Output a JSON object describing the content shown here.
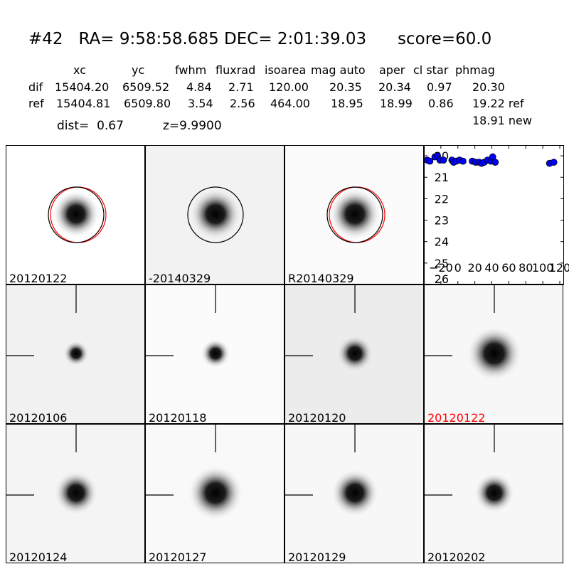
{
  "header": {
    "title": "#42   RA= 9:58:58.685 DEC= 2:01:39.03      score=60.0",
    "columns": [
      "xc",
      "yc",
      "fwhm",
      "fluxrad",
      "isoarea",
      "mag auto",
      "aper",
      "cl star",
      "phmag"
    ],
    "rows": [
      {
        "label": "dif",
        "values": [
          "15404.20",
          "6509.52",
          "4.84",
          "2.71",
          "120.00",
          "20.35",
          "20.34",
          "0.97",
          "20.30"
        ]
      },
      {
        "label": "ref",
        "values": [
          "15404.81",
          "6509.80",
          "3.54",
          "2.56",
          "464.00",
          "18.95",
          "18.99",
          "0.86",
          "19.22 ref"
        ]
      }
    ],
    "new_mag": "18.91 new",
    "dist": "dist=  0.67",
    "z": "z=9.9900"
  },
  "panels": [
    {
      "label": "20120122",
      "bg": "#ffffff",
      "blob_r": 13,
      "core": 0.95,
      "circles": true,
      "red": true,
      "cross": false,
      "label_color": "#000000"
    },
    {
      "label": "-20140329",
      "bg": "#f2f2f2",
      "blob_r": 14,
      "core": 0.95,
      "circles": true,
      "red": false,
      "cross": false,
      "label_color": "#000000"
    },
    {
      "label": "R20140329",
      "bg": "#fbfbfb",
      "blob_r": 14,
      "core": 0.95,
      "circles": true,
      "red": true,
      "cross": false,
      "label_color": "#000000"
    },
    {
      "label": "20120106",
      "bg": "#f1f1f1",
      "blob_r": 7,
      "core": 1.0,
      "circles": false,
      "red": false,
      "cross": true,
      "label_color": "#000000"
    },
    {
      "label": "20120118",
      "bg": "#fbfbfb",
      "blob_r": 8,
      "core": 1.0,
      "circles": false,
      "red": false,
      "cross": true,
      "label_color": "#000000"
    },
    {
      "label": "20120120",
      "bg": "#ececec",
      "blob_r": 10,
      "core": 1.0,
      "circles": false,
      "red": false,
      "cross": true,
      "label_color": "#000000"
    },
    {
      "label": "20120122",
      "bg": "#f7f7f7",
      "blob_r": 15,
      "core": 1.0,
      "circles": false,
      "red": false,
      "cross": true,
      "label_color": "#ff0000"
    },
    {
      "label": "20120124",
      "bg": "#f4f4f4",
      "blob_r": 12,
      "core": 1.0,
      "circles": false,
      "red": false,
      "cross": true,
      "label_color": "#000000"
    },
    {
      "label": "20120127",
      "bg": "#f9f9f9",
      "blob_r": 15,
      "core": 1.0,
      "circles": false,
      "red": false,
      "cross": true,
      "label_color": "#000000"
    },
    {
      "label": "20120129",
      "bg": "#f7f7f7",
      "blob_r": 13,
      "core": 1.0,
      "circles": false,
      "red": false,
      "cross": true,
      "label_color": "#000000"
    },
    {
      "label": "20120202",
      "bg": "#f7f7f7",
      "blob_r": 11,
      "core": 1.0,
      "circles": false,
      "red": false,
      "cross": true,
      "label_color": "#000000"
    }
  ],
  "chart_data": {
    "type": "scatter",
    "xlim": [
      -40,
      125
    ],
    "ylim": [
      26,
      19.5
    ],
    "xticks": [
      -20,
      0,
      20,
      40,
      60,
      80,
      100,
      120
    ],
    "xtick_labels": [
      "−20",
      "0",
      "20",
      "40",
      "60",
      "80",
      "100",
      "120"
    ],
    "yticks": [
      20,
      21,
      22,
      23,
      24,
      25,
      26
    ],
    "point_color": "#0000ff",
    "points": [
      [
        -36,
        20.2
      ],
      [
        -33,
        20.25
      ],
      [
        -27,
        20.05
      ],
      [
        -24,
        20.0
      ],
      [
        -21,
        20.2
      ],
      [
        -17,
        20.2
      ],
      [
        -7,
        20.2
      ],
      [
        -5,
        20.3
      ],
      [
        -2,
        20.25
      ],
      [
        2,
        20.2
      ],
      [
        6,
        20.25
      ],
      [
        17,
        20.25
      ],
      [
        21,
        20.3
      ],
      [
        25,
        20.3
      ],
      [
        28,
        20.35
      ],
      [
        31,
        20.3
      ],
      [
        35,
        20.2
      ],
      [
        39,
        20.25
      ],
      [
        41,
        20.05
      ],
      [
        44,
        20.3
      ],
      [
        108,
        20.35
      ],
      [
        113,
        20.3
      ]
    ]
  }
}
